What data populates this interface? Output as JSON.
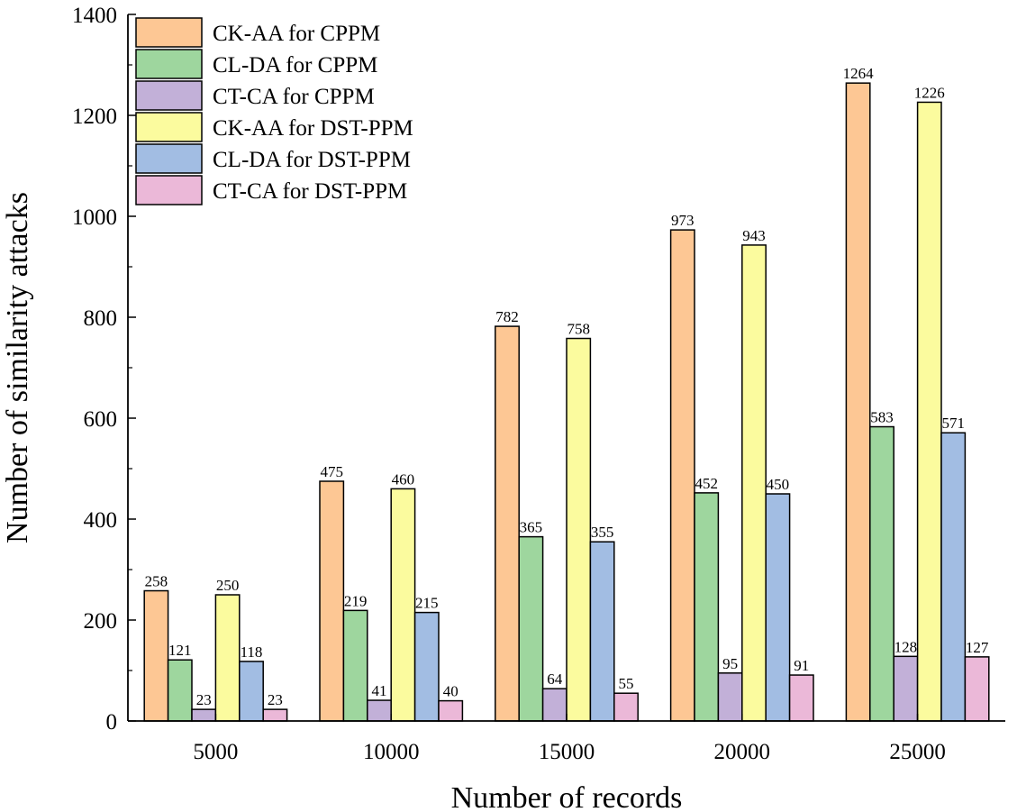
{
  "chart_data": {
    "type": "bar",
    "title": "",
    "xlabel": "Number of records",
    "ylabel": "Number of similarity attacks",
    "categories": [
      "5000",
      "10000",
      "15000",
      "20000",
      "25000"
    ],
    "ylim": [
      0,
      1400
    ],
    "yticks": [
      0,
      200,
      400,
      600,
      800,
      1000,
      1200,
      1400
    ],
    "legend_position": "top-left",
    "series": [
      {
        "name": "CK-AA for CPPM",
        "color": "#FDC794",
        "values": [
          258,
          475,
          782,
          973,
          1264
        ]
      },
      {
        "name": "CL-DA for CPPM",
        "color": "#9ED69E",
        "values": [
          121,
          219,
          365,
          452,
          583
        ]
      },
      {
        "name": "CT-CA for CPPM",
        "color": "#C2B0D8",
        "values": [
          23,
          41,
          64,
          95,
          128
        ]
      },
      {
        "name": "CK-AA for DST-PPM",
        "color": "#FBFB9E",
        "values": [
          250,
          460,
          758,
          943,
          1226
        ]
      },
      {
        "name": "CL-DA for DST-PPM",
        "color": "#A2BDE3",
        "values": [
          118,
          215,
          355,
          450,
          571
        ]
      },
      {
        "name": "CT-CA for DST-PPM",
        "color": "#EBB8D8",
        "values": [
          23,
          40,
          55,
          91,
          127
        ]
      }
    ]
  }
}
